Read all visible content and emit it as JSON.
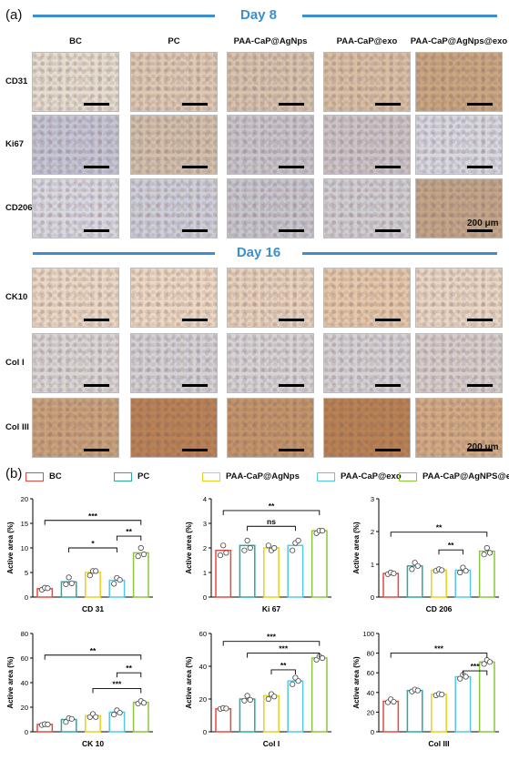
{
  "panel_a_label": "(a)",
  "panel_b_label": "(b)",
  "day8_title": "Day 8",
  "day16_title": "Day 16",
  "columns": [
    "BC",
    "PC",
    "PAA-CaP@AgNps",
    "PAA-CaP@exo",
    "PAA-CaP@AgNps@exo"
  ],
  "day8_rows": [
    "CD31",
    "Ki67",
    "CD206"
  ],
  "day16_rows": [
    "CK10",
    "Col I",
    "Col III"
  ],
  "scale_label": "200 μm",
  "legend": [
    {
      "label": "BC",
      "color": "#e8483f"
    },
    {
      "label": "PC",
      "color": "#2aa8a8"
    },
    {
      "label": "PAA-CaP@AgNps",
      "color": "#e6d21c"
    },
    {
      "label": "PAA-CaP@exo",
      "color": "#55c8e8"
    },
    {
      "label": "PAA-CaP@AgNPS@exo",
      "color": "#8cc63f"
    }
  ],
  "tile_colors": {
    "CD31": [
      "#e4ddd2",
      "#ddc9b6",
      "#d6c3b0",
      "#d8c0a8",
      "#c9a684"
    ],
    "Ki67": [
      "#c4c6d8",
      "#d2c0ae",
      "#c8c5cf",
      "#cbc5cb",
      "#d6d8e4"
    ],
    "CD206": [
      "#d8d9e4",
      "#cdd0dc",
      "#c7c7d1",
      "#d0cfd6",
      "#c2a68c"
    ],
    "CK10": [
      "#ead9c8",
      "#ecd8c6",
      "#e6d2bf",
      "#e4c9ae",
      "#e8d7c7"
    ],
    "Col I": [
      "#d9d6d8",
      "#d3d2d9",
      "#d6d4d9",
      "#d4d2d8",
      "#d6cfcf"
    ],
    "Col III": [
      "#c9a27f",
      "#b98258",
      "#c2956d",
      "#b88256",
      "#d2ab88"
    ]
  },
  "chart_data": [
    {
      "type": "bar",
      "xlabel": "CD 31",
      "ylabel": "Active area (%)",
      "categories": [
        "BC",
        "PC",
        "PAA-CaP@AgNps",
        "PAA-CaP@exo",
        "PAA-CaP@AgNPS@exo"
      ],
      "values": [
        1.7,
        3.1,
        5.0,
        3.4,
        9.0
      ],
      "points": [
        [
          1.5,
          1.9,
          1.8
        ],
        [
          2.6,
          4.0,
          2.8
        ],
        [
          4.4,
          5.3,
          5.3
        ],
        [
          2.7,
          3.9,
          3.5
        ],
        [
          8.3,
          10.0,
          8.7
        ]
      ],
      "ylim": [
        0,
        20
      ],
      "yticks": [
        "0",
        "5",
        "10",
        "15",
        "20"
      ],
      "annotations": [
        "***",
        "**",
        "*"
      ]
    },
    {
      "type": "bar",
      "xlabel": "Ki 67",
      "ylabel": "Active area (%)",
      "categories": [
        "BC",
        "PC",
        "PAA-CaP@AgNps",
        "PAA-CaP@exo",
        "PAA-CaP@AgNPS@exo"
      ],
      "values": [
        1.9,
        2.1,
        2.0,
        2.1,
        2.7
      ],
      "points": [
        [
          1.7,
          2.1,
          1.8
        ],
        [
          1.9,
          2.3,
          2.0
        ],
        [
          2.1,
          1.9,
          2.0
        ],
        [
          1.9,
          2.2,
          2.3
        ],
        [
          2.6,
          2.7,
          2.7
        ]
      ],
      "ylim": [
        0,
        4
      ],
      "yticks": [
        "0",
        "1",
        "2",
        "3",
        "4"
      ],
      "annotations": [
        "**",
        "ns"
      ]
    },
    {
      "type": "bar",
      "xlabel": "CD 206",
      "ylabel": "Active area (%)",
      "categories": [
        "BC",
        "PC",
        "PAA-CaP@AgNps",
        "PAA-CaP@exo",
        "PAA-CaP@AgNPS@exo"
      ],
      "values": [
        0.72,
        0.95,
        0.82,
        0.82,
        1.4
      ],
      "points": [
        [
          0.7,
          0.75,
          0.72
        ],
        [
          0.85,
          1.05,
          0.95
        ],
        [
          0.8,
          0.85,
          0.82
        ],
        [
          0.75,
          0.9,
          0.8
        ],
        [
          1.3,
          1.5,
          1.35
        ]
      ],
      "ylim": [
        0,
        3
      ],
      "yticks": [
        "0",
        "1",
        "2",
        "3"
      ],
      "annotations": [
        "**",
        "**"
      ]
    },
    {
      "type": "bar",
      "xlabel": "CK 10",
      "ylabel": "Active area (%)",
      "categories": [
        "BC",
        "PC",
        "PAA-CaP@AgNps",
        "PAA-CaP@exo",
        "PAA-CaP@AgNPS@exo"
      ],
      "values": [
        6,
        10,
        13,
        16,
        24
      ],
      "points": [
        [
          5.5,
          6.2,
          6.0
        ],
        [
          8.0,
          11.0,
          10.5
        ],
        [
          12.0,
          14.5,
          12.0
        ],
        [
          14.0,
          17.5,
          15.5
        ],
        [
          23.0,
          25.0,
          23.5
        ]
      ],
      "ylim": [
        0,
        80
      ],
      "yticks": [
        "0",
        "20",
        "40",
        "60",
        "80"
      ],
      "annotations": [
        "**",
        "**",
        "***"
      ]
    },
    {
      "type": "bar",
      "xlabel": "Col I",
      "ylabel": "Active area (%)",
      "categories": [
        "BC",
        "PC",
        "PAA-CaP@AgNps",
        "PAA-CaP@exo",
        "PAA-CaP@AgNPS@exo"
      ],
      "values": [
        14,
        20,
        22,
        31,
        45
      ],
      "points": [
        [
          14.0,
          14.5,
          14.2
        ],
        [
          19.0,
          22.0,
          19.5
        ],
        [
          20.0,
          23.0,
          21.5
        ],
        [
          29.0,
          33.0,
          31.0
        ],
        [
          44.0,
          46.0,
          45.0
        ]
      ],
      "ylim": [
        0,
        60
      ],
      "yticks": [
        "0",
        "20",
        "40",
        "60"
      ],
      "annotations": [
        "***",
        "***",
        "**"
      ]
    },
    {
      "type": "bar",
      "xlabel": "Col III",
      "ylabel": "Active area (%)",
      "categories": [
        "BC",
        "PC",
        "PAA-CaP@AgNps",
        "PAA-CaP@exo",
        "PAA-CaP@AgNPS@exo"
      ],
      "values": [
        31,
        42,
        38,
        56,
        71
      ],
      "points": [
        [
          30.0,
          33.0,
          30.5
        ],
        [
          41.0,
          43.0,
          42.0
        ],
        [
          37.0,
          38.5,
          38.0
        ],
        [
          54.0,
          58.0,
          56.0
        ],
        [
          69.0,
          73.0,
          71.0
        ]
      ],
      "ylim": [
        0,
        100
      ],
      "yticks": [
        "0",
        "20",
        "40",
        "60",
        "80",
        "100"
      ],
      "annotations": [
        "***",
        "***"
      ]
    }
  ]
}
